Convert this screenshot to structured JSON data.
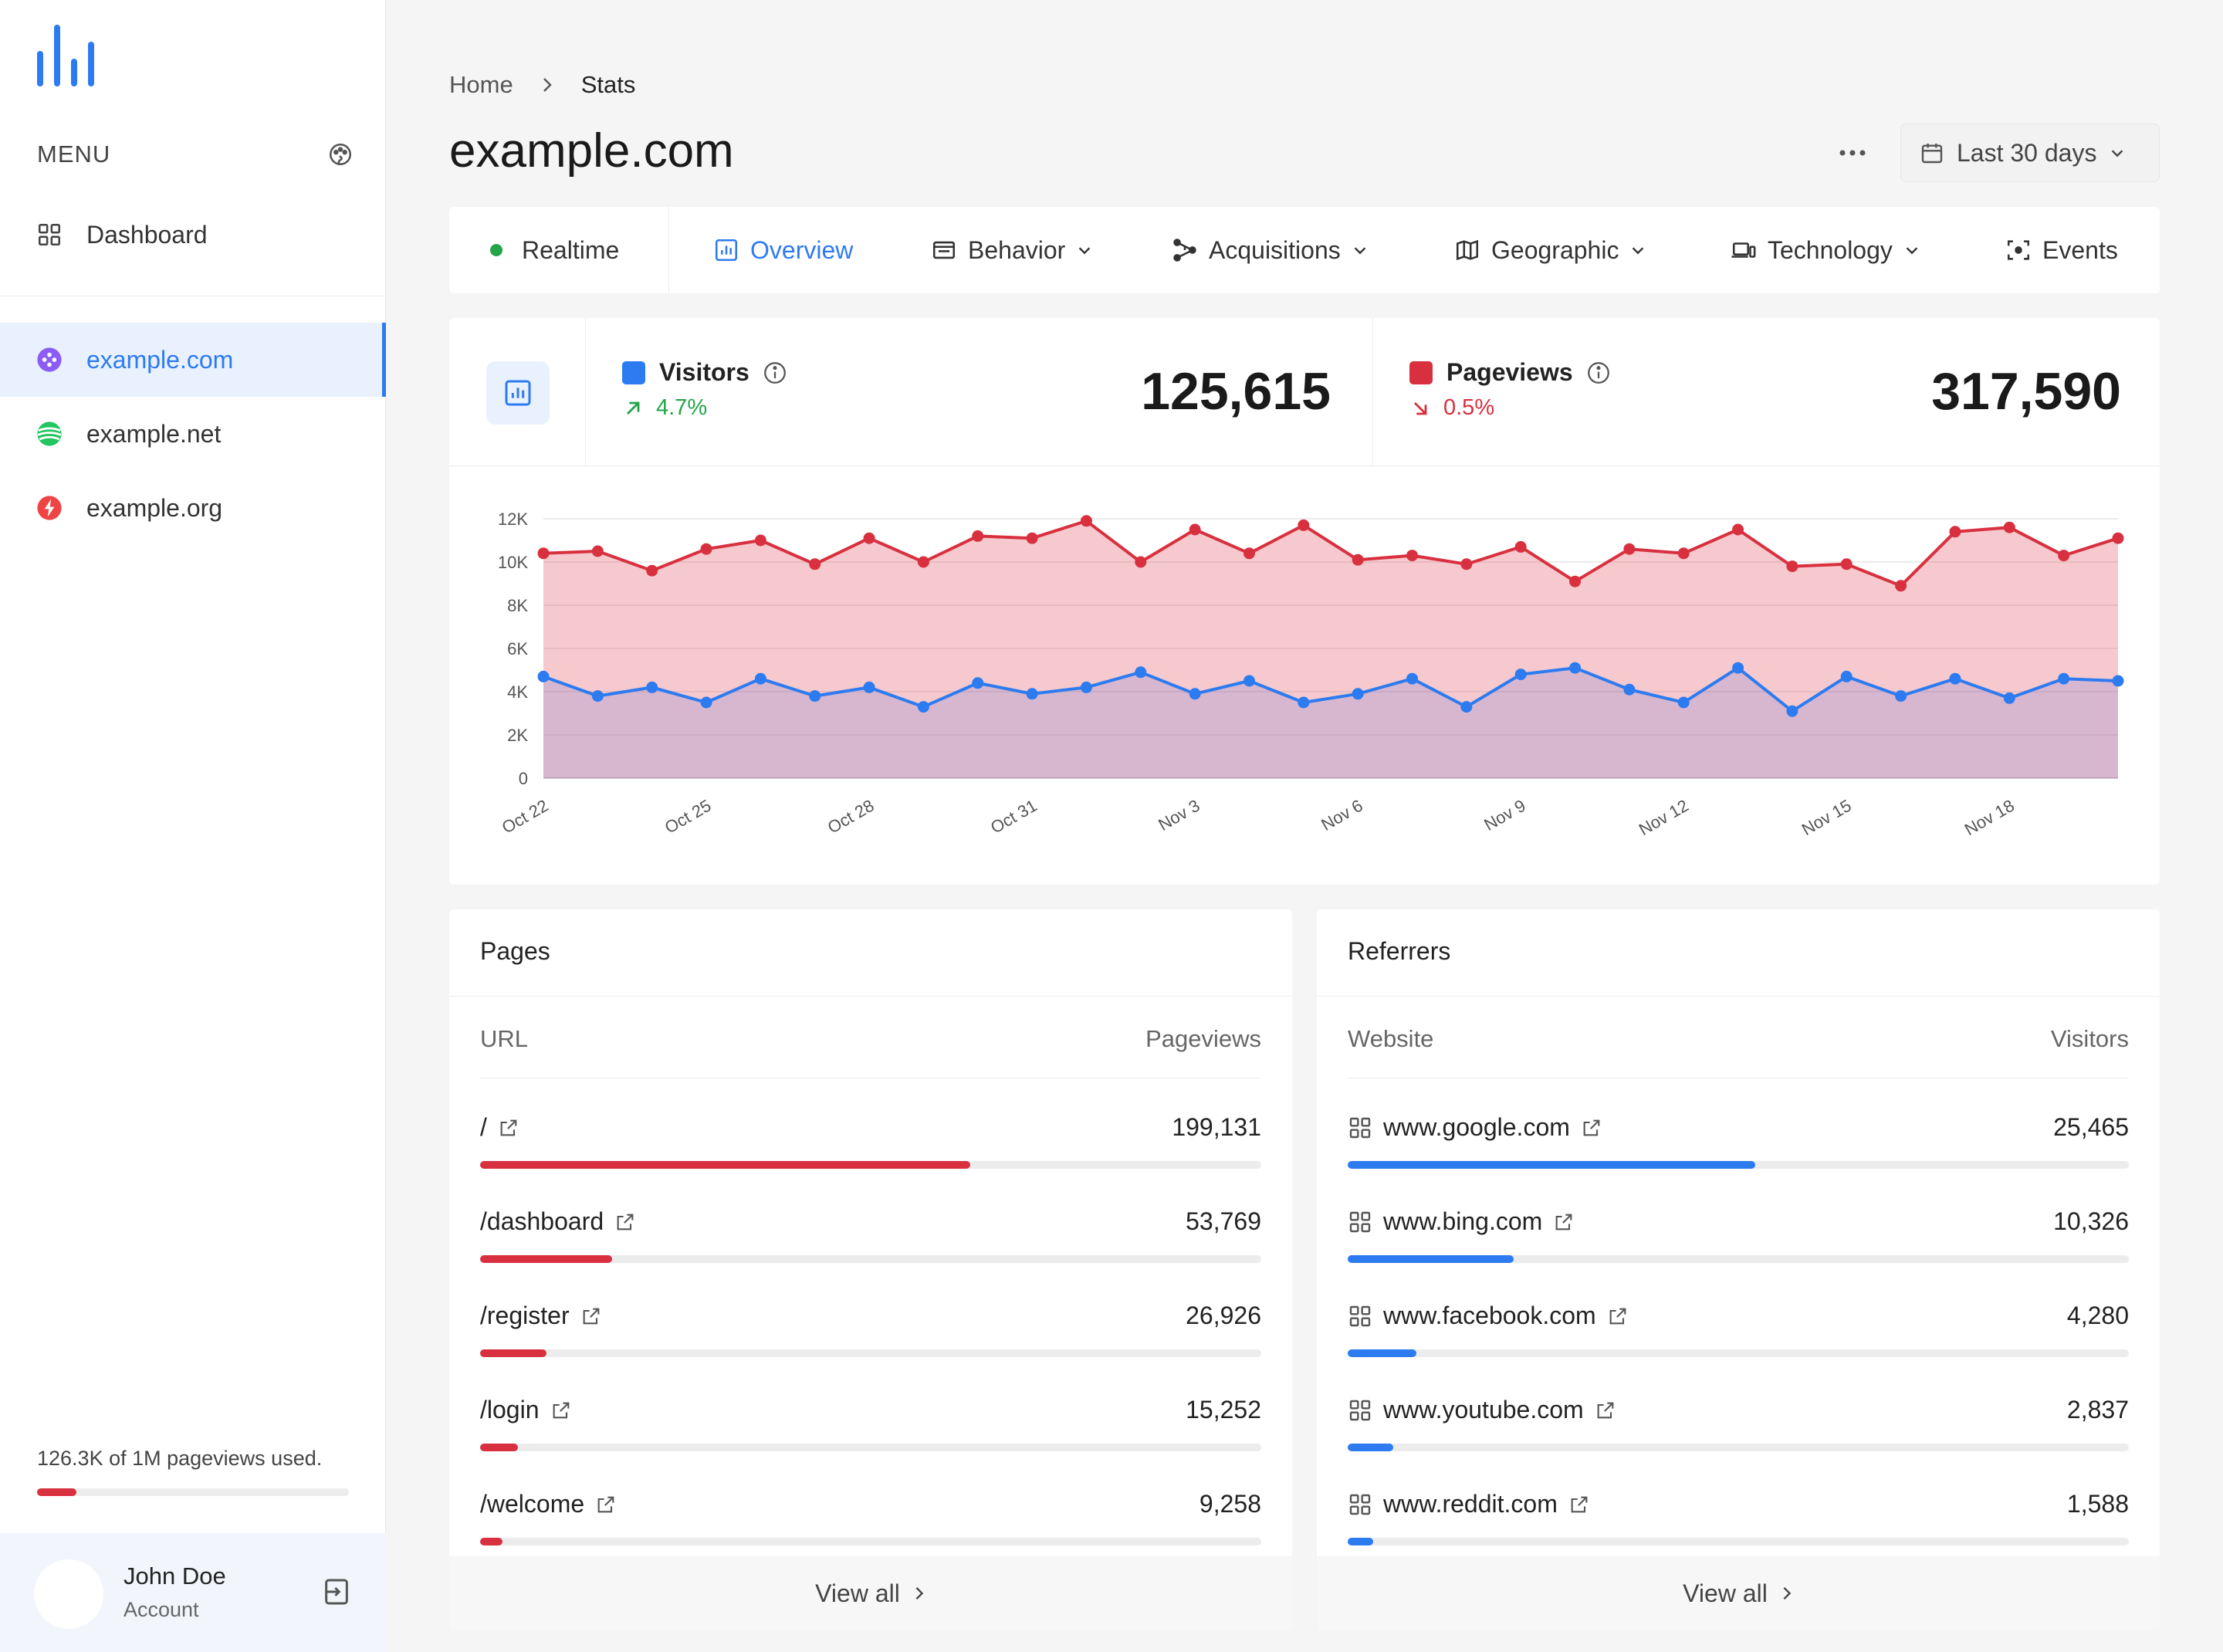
{
  "sidebar": {
    "menu_label": "MENU",
    "items": [
      {
        "label": "Dashboard"
      },
      {
        "label": "example.com"
      },
      {
        "label": "example.net"
      },
      {
        "label": "example.org"
      }
    ],
    "usage_text": "126.3K of 1M pageviews used.",
    "usage_fraction": 0.126,
    "account": {
      "name": "John Doe",
      "sub": "Account"
    }
  },
  "header": {
    "breadcrumb_home": "Home",
    "breadcrumb_current": "Stats",
    "title": "example.com",
    "date_range": "Last 30 days"
  },
  "tabs": [
    {
      "label": "Realtime",
      "icon": "green-dot-icon"
    },
    {
      "label": "Overview",
      "icon": "chart-bar-icon"
    },
    {
      "label": "Behavior",
      "icon": "window-icon"
    },
    {
      "label": "Acquisitions",
      "icon": "share-icon"
    },
    {
      "label": "Geographic",
      "icon": "map-icon"
    },
    {
      "label": "Technology",
      "icon": "devices-icon"
    },
    {
      "label": "Events",
      "icon": "focus-icon"
    }
  ],
  "stats": {
    "visitors": {
      "label": "Visitors",
      "delta": "4.7%",
      "value": "125,615",
      "color": "#2d7bf0",
      "trend": "up"
    },
    "pageviews": {
      "label": "Pageviews",
      "delta": "0.5%",
      "value": "317,590",
      "color": "#d8303f",
      "trend": "down"
    }
  },
  "chart_data": {
    "type": "area",
    "y_ticks": [
      "0",
      "2K",
      "4K",
      "6K",
      "8K",
      "10K",
      "12K"
    ],
    "ylim": [
      0,
      12000
    ],
    "x_tick_labels": [
      "Oct 22",
      "Oct 25",
      "Oct 28",
      "Oct 31",
      "Nov 3",
      "Nov 6",
      "Nov 9",
      "Nov 12",
      "Nov 15",
      "Nov 18"
    ],
    "grid": true,
    "series": [
      {
        "name": "Pageviews",
        "color": "#d8303f",
        "values": [
          10400,
          10500,
          9600,
          10600,
          11000,
          9900,
          11100,
          10000,
          11200,
          11100,
          11900,
          10000,
          11500,
          10400,
          11700,
          10100,
          10300,
          9900,
          10700,
          9100,
          10600,
          10400,
          11500,
          9800,
          9900,
          8900,
          11400,
          11600,
          10300,
          11100
        ]
      },
      {
        "name": "Visitors",
        "color": "#2d7bf0",
        "values": [
          4700,
          3800,
          4200,
          3500,
          4600,
          3800,
          4200,
          3300,
          4400,
          3900,
          4200,
          4900,
          3900,
          4500,
          3500,
          3900,
          4600,
          3300,
          4800,
          5100,
          4100,
          3500,
          5100,
          3100,
          4700,
          3800,
          4600,
          3700,
          4600,
          4500
        ]
      }
    ]
  },
  "pages": {
    "title": "Pages",
    "col_left": "URL",
    "col_right": "Pageviews",
    "rows": [
      {
        "label": "/",
        "value": "199,131",
        "fraction": 0.627
      },
      {
        "label": "/dashboard",
        "value": "53,769",
        "fraction": 0.169
      },
      {
        "label": "/register",
        "value": "26,926",
        "fraction": 0.085
      },
      {
        "label": "/login",
        "value": "15,252",
        "fraction": 0.048
      },
      {
        "label": "/welcome",
        "value": "9,258",
        "fraction": 0.029
      }
    ],
    "view_all": "View all",
    "bar_color": "#d8303f"
  },
  "referrers": {
    "title": "Referrers",
    "col_left": "Website",
    "col_right": "Visitors",
    "rows": [
      {
        "label": "www.google.com",
        "value": "25,465",
        "fraction": 0.522
      },
      {
        "label": "www.bing.com",
        "value": "10,326",
        "fraction": 0.212
      },
      {
        "label": "www.facebook.com",
        "value": "4,280",
        "fraction": 0.088
      },
      {
        "label": "www.youtube.com",
        "value": "2,837",
        "fraction": 0.058
      },
      {
        "label": "www.reddit.com",
        "value": "1,588",
        "fraction": 0.033
      }
    ],
    "view_all": "View all",
    "bar_color": "#2d7bf0"
  }
}
